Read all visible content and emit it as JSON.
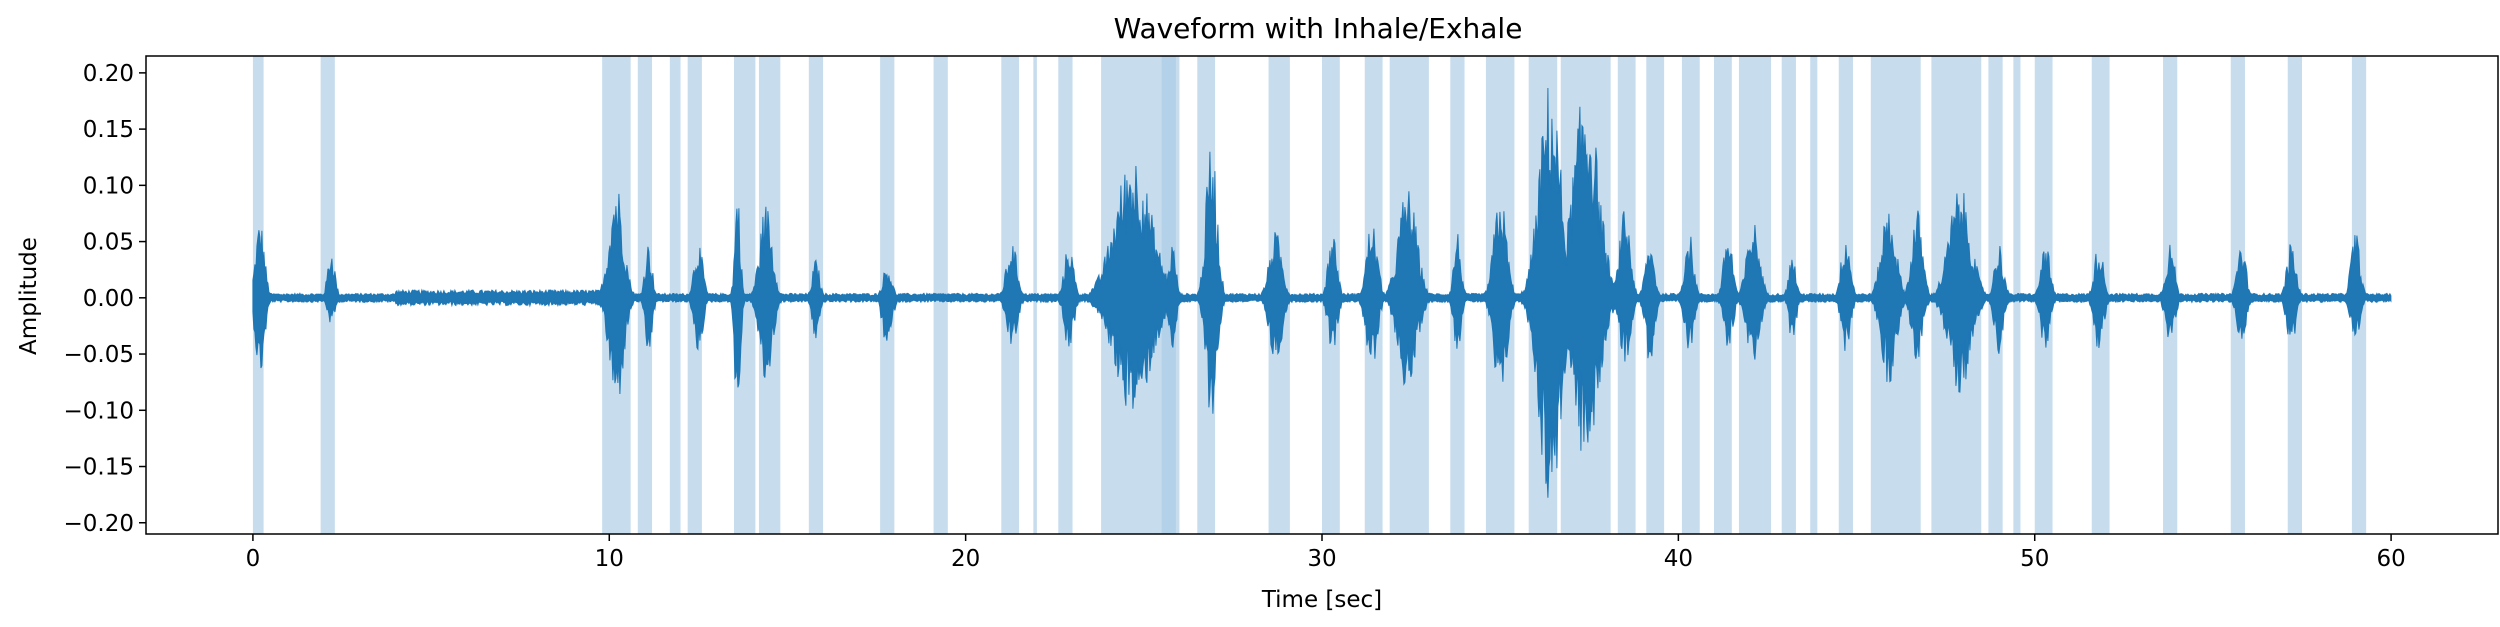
{
  "chart_data": {
    "type": "line",
    "title": "Waveform with Inhale/Exhale",
    "xlabel": "Time [sec]",
    "ylabel": "Amplitude",
    "xlim": [
      -3,
      63
    ],
    "ylim": [
      -0.21,
      0.215
    ],
    "x_ticks": [
      0,
      10,
      20,
      30,
      40,
      50,
      60
    ],
    "y_ticks": [
      -0.2,
      -0.15,
      -0.1,
      -0.05,
      0.0,
      0.05,
      0.1,
      0.15,
      0.2
    ],
    "x_tick_labels": [
      "0",
      "10",
      "20",
      "30",
      "40",
      "50",
      "60"
    ],
    "y_tick_labels": [
      "−0.20",
      "−0.15",
      "−0.10",
      "−0.05",
      "0.00",
      "0.05",
      "0.10",
      "0.15",
      "0.20"
    ],
    "grid": false,
    "colors": {
      "waveform": "#1f77b4",
      "span": "#a9cbe5"
    },
    "series": [
      {
        "x_range": [
          0,
          60
        ],
        "noise_level": 0.004,
        "bursts": [
          {
            "t": 0.2,
            "w": 0.25,
            "pos": 0.07,
            "neg": 0.072
          },
          {
            "t": 2.2,
            "w": 0.2,
            "pos": 0.045,
            "neg": 0.025
          },
          {
            "t": 10.2,
            "w": 0.4,
            "pos": 0.105,
            "neg": 0.1
          },
          {
            "t": 11.1,
            "w": 0.2,
            "pos": 0.05,
            "neg": 0.055
          },
          {
            "t": 12.5,
            "w": 0.25,
            "pos": 0.05,
            "neg": 0.05
          },
          {
            "t": 13.6,
            "w": 0.15,
            "pos": 0.1,
            "neg": 0.123
          },
          {
            "t": 14.4,
            "w": 0.35,
            "pos": 0.085,
            "neg": 0.08
          },
          {
            "t": 15.8,
            "w": 0.2,
            "pos": 0.035,
            "neg": 0.04
          },
          {
            "t": 17.8,
            "w": 0.25,
            "pos": 0.03,
            "neg": 0.05
          },
          {
            "t": 21.3,
            "w": 0.3,
            "pos": 0.05,
            "neg": 0.045
          },
          {
            "t": 22.9,
            "w": 0.25,
            "pos": 0.05,
            "neg": 0.05
          },
          {
            "t": 24.7,
            "w": 1.0,
            "pos": 0.13,
            "neg": 0.105
          },
          {
            "t": 25.8,
            "w": 0.2,
            "pos": 0.05,
            "neg": 0.05
          },
          {
            "t": 26.9,
            "w": 0.3,
            "pos": 0.145,
            "neg": 0.11
          },
          {
            "t": 28.7,
            "w": 0.35,
            "pos": 0.06,
            "neg": 0.06
          },
          {
            "t": 30.3,
            "w": 0.25,
            "pos": 0.06,
            "neg": 0.05
          },
          {
            "t": 31.4,
            "w": 0.3,
            "pos": 0.07,
            "neg": 0.07
          },
          {
            "t": 32.4,
            "w": 0.5,
            "pos": 0.1,
            "neg": 0.085
          },
          {
            "t": 33.8,
            "w": 0.2,
            "pos": 0.06,
            "neg": 0.05
          },
          {
            "t": 35.0,
            "w": 0.35,
            "pos": 0.095,
            "neg": 0.1
          },
          {
            "t": 36.4,
            "w": 0.6,
            "pos": 0.195,
            "neg": 0.19
          },
          {
            "t": 37.4,
            "w": 0.7,
            "pos": 0.19,
            "neg": 0.15
          },
          {
            "t": 38.5,
            "w": 0.3,
            "pos": 0.08,
            "neg": 0.06
          },
          {
            "t": 39.2,
            "w": 0.25,
            "pos": 0.05,
            "neg": 0.06
          },
          {
            "t": 40.3,
            "w": 0.25,
            "pos": 0.06,
            "neg": 0.05
          },
          {
            "t": 41.4,
            "w": 0.25,
            "pos": 0.06,
            "neg": 0.05
          },
          {
            "t": 42.1,
            "w": 0.35,
            "pos": 0.07,
            "neg": 0.06
          },
          {
            "t": 43.2,
            "w": 0.2,
            "pos": 0.04,
            "neg": 0.04
          },
          {
            "t": 44.7,
            "w": 0.25,
            "pos": 0.06,
            "neg": 0.05
          },
          {
            "t": 45.9,
            "w": 0.4,
            "pos": 0.085,
            "neg": 0.08
          },
          {
            "t": 46.7,
            "w": 0.3,
            "pos": 0.08,
            "neg": 0.06
          },
          {
            "t": 47.9,
            "w": 0.6,
            "pos": 0.1,
            "neg": 0.085
          },
          {
            "t": 49.0,
            "w": 0.25,
            "pos": 0.05,
            "neg": 0.05
          },
          {
            "t": 50.3,
            "w": 0.25,
            "pos": 0.05,
            "neg": 0.05
          },
          {
            "t": 51.8,
            "w": 0.25,
            "pos": 0.05,
            "neg": 0.05
          },
          {
            "t": 53.8,
            "w": 0.25,
            "pos": 0.05,
            "neg": 0.045
          },
          {
            "t": 55.8,
            "w": 0.25,
            "pos": 0.05,
            "neg": 0.045
          },
          {
            "t": 57.2,
            "w": 0.25,
            "pos": 0.05,
            "neg": 0.045
          },
          {
            "t": 59.0,
            "w": 0.25,
            "pos": 0.06,
            "neg": 0.045
          }
        ]
      }
    ],
    "spans": [
      [
        0.0,
        0.3
      ],
      [
        1.9,
        2.3
      ],
      [
        9.8,
        10.6
      ],
      [
        10.8,
        11.2
      ],
      [
        11.7,
        12.0
      ],
      [
        12.2,
        12.6
      ],
      [
        13.5,
        14.1
      ],
      [
        14.2,
        14.8
      ],
      [
        15.6,
        16.0
      ],
      [
        17.6,
        18.0
      ],
      [
        19.1,
        19.5
      ],
      [
        21.0,
        21.5
      ],
      [
        21.9,
        22.0
      ],
      [
        22.6,
        23.0
      ],
      [
        23.8,
        26.0
      ],
      [
        25.5,
        25.9
      ],
      [
        26.5,
        27.0
      ],
      [
        28.5,
        29.1
      ],
      [
        30.0,
        30.5
      ],
      [
        31.2,
        31.7
      ],
      [
        31.9,
        33.0
      ],
      [
        33.6,
        34.0
      ],
      [
        34.6,
        35.4
      ],
      [
        35.8,
        36.6
      ],
      [
        36.7,
        38.1
      ],
      [
        38.3,
        38.8
      ],
      [
        39.1,
        39.6
      ],
      [
        40.1,
        40.6
      ],
      [
        41.0,
        41.5
      ],
      [
        41.7,
        42.6
      ],
      [
        42.9,
        43.3
      ],
      [
        43.7,
        43.9
      ],
      [
        44.5,
        44.9
      ],
      [
        45.4,
        46.8
      ],
      [
        47.1,
        48.5
      ],
      [
        48.7,
        49.1
      ],
      [
        49.4,
        49.6
      ],
      [
        50.0,
        50.5
      ],
      [
        51.6,
        52.1
      ],
      [
        53.6,
        54.0
      ],
      [
        55.5,
        55.9
      ],
      [
        57.1,
        57.5
      ],
      [
        58.9,
        59.3
      ]
    ]
  }
}
